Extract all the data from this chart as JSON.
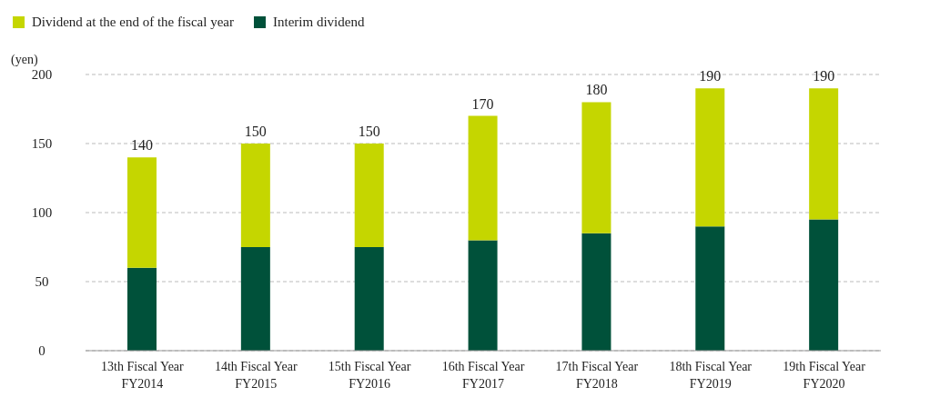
{
  "chart_data": {
    "type": "bar",
    "stacked": true,
    "ylabel": "(yen)",
    "categories": [
      "13th Fiscal Year\nFY2014",
      "14th Fiscal Year\nFY2015",
      "15th Fiscal Year\nFY2016",
      "16th Fiscal Year\nFY2017",
      "17th Fiscal Year\nFY2018",
      "18th Fiscal Year\nFY2019",
      "19th Fiscal Year\nFY2020"
    ],
    "series": [
      {
        "name": "Interim dividend",
        "color": "#00513a",
        "values": [
          60,
          75,
          75,
          80,
          85,
          90,
          95
        ]
      },
      {
        "name": "Dividend at the end of the fiscal year",
        "color": "#c5d600",
        "values": [
          80,
          75,
          75,
          90,
          95,
          100,
          95
        ]
      }
    ],
    "totals": [
      "140",
      "150",
      "150",
      "170",
      "180",
      "190",
      "190"
    ],
    "ylim": [
      0,
      200
    ],
    "yticks": [
      0,
      50,
      100,
      150,
      200
    ],
    "grid": "y",
    "legend": "top left"
  }
}
